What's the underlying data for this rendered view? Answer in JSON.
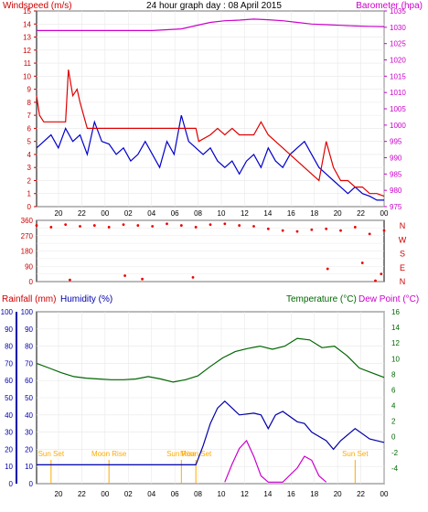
{
  "header": {
    "left_label": "Windspeed (m/s)",
    "center_title": "24 hour graph day : 08 April 2015",
    "right_label": "Barometer (hpa)"
  },
  "colors": {
    "wind_avg": "#0000cc",
    "wind_gust": "#dd0000",
    "barometer": "#cc00cc",
    "direction": "#ee0000",
    "rainfall": "#cc0000",
    "humidity": "#0000aa",
    "temperature": "#006600",
    "dewpoint": "#cc00cc",
    "sun_moon": "#ffaa00"
  },
  "chart_data": [
    {
      "name": "wind",
      "type": "line",
      "x_unit": "hour",
      "x_ticks": [
        "20",
        "22",
        "00",
        "02",
        "04",
        "06",
        "08",
        "10",
        "12",
        "14",
        "16",
        "18",
        "20",
        "22",
        "00"
      ],
      "ylim": [
        0,
        15
      ],
      "yticks": [
        0,
        1,
        2,
        3,
        4,
        5,
        6,
        7,
        8,
        9,
        10,
        11,
        12,
        13,
        14,
        15
      ],
      "ylim_right": [
        975,
        1035
      ],
      "yticks_right": [
        975,
        980,
        985,
        990,
        995,
        1000,
        1005,
        1010,
        1015,
        1020,
        1025,
        1030,
        1035
      ],
      "series": [
        {
          "name": "Windspeed (m/s)",
          "axis": "left",
          "points": [
            [
              0,
              4.5
            ],
            [
              0.5,
              5
            ],
            [
              1,
              5.5
            ],
            [
              1.5,
              4.5
            ],
            [
              2,
              6
            ],
            [
              2.5,
              5
            ],
            [
              3,
              5.5
            ],
            [
              3.5,
              4
            ],
            [
              4,
              6.5
            ],
            [
              4.5,
              5
            ],
            [
              5,
              4.8
            ],
            [
              5.5,
              4
            ],
            [
              6,
              4.5
            ],
            [
              6.5,
              3.5
            ],
            [
              7,
              4
            ],
            [
              7.5,
              5
            ],
            [
              8,
              4
            ],
            [
              8.5,
              3
            ],
            [
              9,
              5
            ],
            [
              9.5,
              4
            ],
            [
              10,
              7
            ],
            [
              10.5,
              5
            ],
            [
              11,
              4.5
            ],
            [
              11.5,
              4
            ],
            [
              12,
              4.5
            ],
            [
              12.5,
              3.5
            ],
            [
              13,
              3
            ],
            [
              13.5,
              3.5
            ],
            [
              14,
              2.5
            ],
            [
              14.5,
              3.5
            ],
            [
              15,
              4
            ],
            [
              15.5,
              3
            ],
            [
              16,
              4.5
            ],
            [
              16.5,
              3.5
            ],
            [
              17,
              3
            ],
            [
              17.5,
              4
            ],
            [
              18,
              4.5
            ],
            [
              18.5,
              5
            ],
            [
              19,
              4
            ],
            [
              19.5,
              3
            ],
            [
              20,
              2.5
            ],
            [
              20.5,
              2
            ],
            [
              21,
              1.5
            ],
            [
              21.5,
              1
            ],
            [
              22,
              1.5
            ],
            [
              22.5,
              1
            ],
            [
              23,
              0.8
            ],
            [
              23.5,
              0.5
            ],
            [
              24,
              0.5
            ]
          ]
        },
        {
          "name": "Gust (m/s)",
          "axis": "left",
          "points": [
            [
              0,
              8.5
            ],
            [
              0.2,
              7
            ],
            [
              0.5,
              6.5
            ],
            [
              1,
              6.5
            ],
            [
              1.5,
              6.5
            ],
            [
              2,
              6.5
            ],
            [
              2.2,
              10.5
            ],
            [
              2.5,
              8.5
            ],
            [
              2.8,
              9
            ],
            [
              3,
              8
            ],
            [
              3.5,
              6
            ],
            [
              4,
              6
            ],
            [
              5,
              6
            ],
            [
              6,
              6
            ],
            [
              7,
              6
            ],
            [
              8,
              6
            ],
            [
              9,
              6
            ],
            [
              10,
              6
            ],
            [
              11,
              6
            ],
            [
              11.2,
              5
            ],
            [
              12,
              5.5
            ],
            [
              12.5,
              6
            ],
            [
              13,
              5.5
            ],
            [
              13.5,
              6
            ],
            [
              14,
              5.5
            ],
            [
              15,
              5.5
            ],
            [
              15.5,
              6.5
            ],
            [
              16,
              5.5
            ],
            [
              16.5,
              5
            ],
            [
              17,
              4.5
            ],
            [
              17.5,
              4
            ],
            [
              18,
              3.5
            ],
            [
              18.5,
              3
            ],
            [
              19,
              2.5
            ],
            [
              19.5,
              2
            ],
            [
              20,
              5
            ],
            [
              20.5,
              3
            ],
            [
              21,
              2
            ],
            [
              21.5,
              2
            ],
            [
              22,
              1.5
            ],
            [
              22.5,
              1.5
            ],
            [
              23,
              1
            ],
            [
              23.5,
              1
            ],
            [
              24,
              0.8
            ]
          ]
        },
        {
          "name": "Barometer (hpa)",
          "axis": "right",
          "points": [
            [
              0,
              1029
            ],
            [
              2,
              1029
            ],
            [
              4,
              1029
            ],
            [
              6,
              1029
            ],
            [
              8,
              1029
            ],
            [
              10,
              1029.5
            ],
            [
              11,
              1030.5
            ],
            [
              12,
              1031.5
            ],
            [
              13,
              1032
            ],
            [
              14,
              1032.2
            ],
            [
              15,
              1032.5
            ],
            [
              16,
              1032.3
            ],
            [
              17,
              1032
            ],
            [
              18,
              1031.5
            ],
            [
              19,
              1031
            ],
            [
              20,
              1030.8
            ],
            [
              21,
              1030.6
            ],
            [
              22,
              1030.4
            ],
            [
              23,
              1030.3
            ],
            [
              24,
              1030.2
            ]
          ]
        }
      ]
    },
    {
      "name": "wind_direction",
      "type": "scatter",
      "x_unit": "hour",
      "ylim": [
        0,
        360
      ],
      "yticks": [
        0,
        45,
        90,
        135,
        180,
        225,
        270,
        315,
        360
      ],
      "compass_labels": [
        "N",
        "W",
        "S",
        "E",
        "N"
      ],
      "series": [
        {
          "name": "Wind direction (deg)",
          "points": [
            [
              0,
              330
            ],
            [
              1,
              320
            ],
            [
              2,
              335
            ],
            [
              3,
              325
            ],
            [
              4,
              330
            ],
            [
              5,
              320
            ],
            [
              6,
              335
            ],
            [
              7,
              330
            ],
            [
              8,
              325
            ],
            [
              9,
              340
            ],
            [
              10,
              330
            ],
            [
              11,
              320
            ],
            [
              12,
              335
            ],
            [
              13,
              340
            ],
            [
              14,
              330
            ],
            [
              15,
              325
            ],
            [
              16,
              310
            ],
            [
              17,
              300
            ],
            [
              18,
              295
            ],
            [
              19,
              305
            ],
            [
              20,
              310
            ],
            [
              21,
              300
            ],
            [
              22,
              320
            ],
            [
              23,
              280
            ],
            [
              24,
              300
            ],
            [
              2.3,
              10
            ],
            [
              6.1,
              35
            ],
            [
              7.3,
              15
            ],
            [
              10.8,
              25
            ],
            [
              20.1,
              75
            ],
            [
              22.5,
              110
            ],
            [
              23.4,
              5
            ],
            [
              23.8,
              45
            ]
          ]
        }
      ]
    },
    {
      "name": "rain_humidity",
      "type": "line",
      "x_unit": "hour",
      "ylim": [
        0,
        100
      ],
      "yticks": [
        0,
        10,
        20,
        30,
        40,
        50,
        60,
        70,
        80,
        90,
        100
      ],
      "ylim_right": [
        -6,
        16
      ],
      "yticks_right": [
        -4,
        -2,
        0,
        2,
        4,
        6,
        8,
        10,
        12,
        14,
        16
      ],
      "labels": {
        "rainfall": "Rainfall (mm)",
        "humidity": "Humidity (%)",
        "temperature": "Temperature (°C)",
        "dewpoint": "Dew Point (°C)"
      },
      "events": [
        {
          "label": "Sun Set",
          "x": 1
        },
        {
          "label": "Moon Rise",
          "x": 5
        },
        {
          "label": "Sun Rise",
          "x": 10
        },
        {
          "label": "Moon Set",
          "x": 11
        },
        {
          "label": "Sun Set",
          "x": 22
        }
      ],
      "series": [
        {
          "name": "Rainfall",
          "axis": "left",
          "points": [
            [
              0,
              11
            ],
            [
              2,
              11
            ],
            [
              4,
              11
            ],
            [
              6,
              11
            ],
            [
              8,
              11
            ],
            [
              10,
              11
            ],
            [
              11,
              11
            ],
            [
              11.5,
              22
            ],
            [
              12,
              35
            ],
            [
              12.5,
              44
            ],
            [
              13,
              48
            ],
            [
              13.5,
              44
            ],
            [
              14,
              40
            ],
            [
              15,
              41
            ],
            [
              15.5,
              40
            ],
            [
              16,
              32
            ],
            [
              16.5,
              40
            ],
            [
              17,
              42
            ],
            [
              18,
              36
            ],
            [
              18.5,
              35
            ],
            [
              19,
              30
            ],
            [
              20,
              25
            ],
            [
              20.5,
              20
            ],
            [
              21,
              25
            ],
            [
              22,
              32
            ],
            [
              23,
              26
            ],
            [
              24,
              24
            ]
          ]
        },
        {
          "name": "Temperature",
          "axis": "right",
          "points": [
            [
              0,
              9.4
            ],
            [
              1,
              8.8
            ],
            [
              2,
              8.2
            ],
            [
              3,
              7.7
            ],
            [
              4,
              7.5
            ],
            [
              5,
              7.4
            ],
            [
              6,
              7.3
            ],
            [
              7,
              7.3
            ],
            [
              8,
              7.4
            ],
            [
              9,
              7.7
            ],
            [
              10,
              7.4
            ],
            [
              11,
              7.0
            ],
            [
              12,
              7.3
            ],
            [
              13,
              7.8
            ],
            [
              14,
              9.0
            ],
            [
              15,
              10.1
            ],
            [
              16,
              10.9
            ],
            [
              17,
              11.3
            ],
            [
              18,
              11.6
            ],
            [
              19,
              11.2
            ],
            [
              20,
              11.6
            ],
            [
              21,
              12.6
            ],
            [
              22,
              12.4
            ],
            [
              23,
              11.4
            ],
            [
              24,
              11.6
            ],
            [
              25,
              10.4
            ],
            [
              26,
              8.8
            ],
            [
              27,
              8.2
            ],
            [
              28,
              7.6
            ]
          ]
        },
        {
          "name": "Dew Point",
          "axis": "right",
          "points": [
            [
              13,
              -5.8
            ],
            [
              13.5,
              -3.5
            ],
            [
              14,
              -1.5
            ],
            [
              14.5,
              -0.5
            ],
            [
              15,
              -2.5
            ],
            [
              15.5,
              -5
            ],
            [
              16,
              -5.8
            ],
            [
              17,
              -5.8
            ],
            [
              18,
              -4
            ],
            [
              18.5,
              -2.5
            ],
            [
              19,
              -3
            ],
            [
              19.5,
              -5
            ],
            [
              20,
              -5.8
            ]
          ]
        }
      ]
    }
  ],
  "y_tick_labels": {
    "wind_left": [
      "0",
      "1",
      "2",
      "3",
      "4",
      "5",
      "6",
      "7",
      "8",
      "9",
      "10",
      "11",
      "12",
      "13",
      "14",
      "15"
    ],
    "baro_right": [
      "975",
      "980",
      "985",
      "990",
      "995",
      "1000",
      "1005",
      "1010",
      "1015",
      "1020",
      "1025",
      "1030",
      "1035"
    ],
    "dir_left": [
      "0",
      "45",
      "90",
      "135",
      "180",
      "225",
      "270",
      "315",
      "360"
    ],
    "rain_left": [
      "0",
      "10",
      "20",
      "30",
      "40",
      "50",
      "60",
      "70",
      "80",
      "90",
      "100"
    ],
    "hum_left": [
      "0",
      "10",
      "20",
      "30",
      "40",
      "50",
      "60",
      "70",
      "80",
      "90",
      "100"
    ],
    "temp_right": [
      "-4",
      "-2",
      "0",
      "2",
      "4",
      "6",
      "8",
      "10",
      "12",
      "14",
      "16"
    ]
  }
}
